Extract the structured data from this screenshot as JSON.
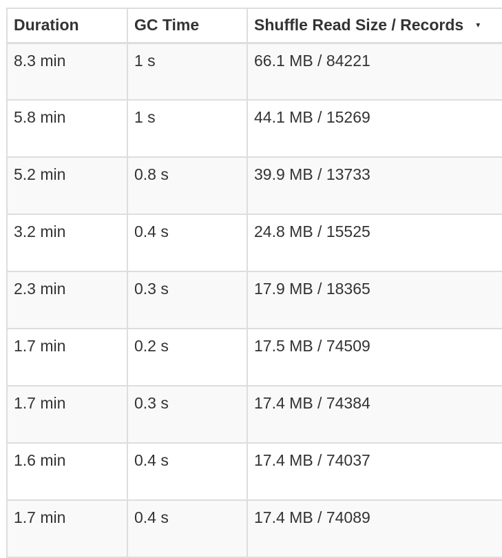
{
  "table": {
    "headers": {
      "duration": "Duration",
      "gc_time": "GC Time",
      "shuffle": "Shuffle Read Size / Records"
    },
    "sort_indicator": "▾",
    "rows": [
      {
        "duration": "8.3 min",
        "gc_time": "1 s",
        "shuffle": "66.1 MB / 84221"
      },
      {
        "duration": "5.8 min",
        "gc_time": "1 s",
        "shuffle": "44.1 MB / 15269"
      },
      {
        "duration": "5.2 min",
        "gc_time": "0.8 s",
        "shuffle": "39.9 MB / 13733"
      },
      {
        "duration": "3.2 min",
        "gc_time": "0.4 s",
        "shuffle": "24.8 MB / 15525"
      },
      {
        "duration": "2.3 min",
        "gc_time": "0.3 s",
        "shuffle": "17.9 MB / 18365"
      },
      {
        "duration": "1.7 min",
        "gc_time": "0.2 s",
        "shuffle": "17.5 MB / 74509"
      },
      {
        "duration": "1.7 min",
        "gc_time": "0.3 s",
        "shuffle": "17.4 MB / 74384"
      },
      {
        "duration": "1.6 min",
        "gc_time": "0.4 s",
        "shuffle": "17.4 MB / 74037"
      },
      {
        "duration": "1.7 min",
        "gc_time": "0.4 s",
        "shuffle": "17.4 MB / 74089"
      }
    ]
  }
}
